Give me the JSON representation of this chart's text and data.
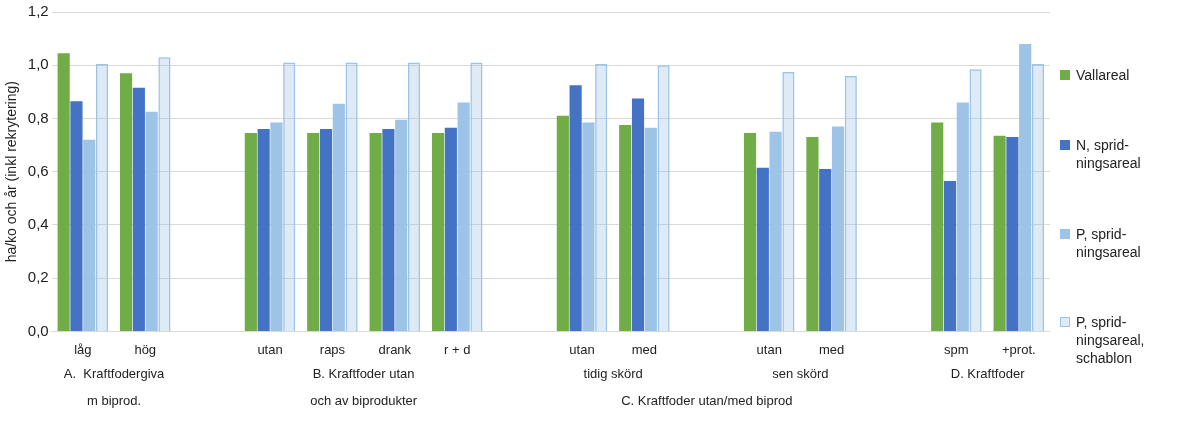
{
  "chart_data": {
    "type": "bar",
    "ylabel": "ha/ko och år (inkl rekrytering)",
    "categories": [
      "låg",
      "hög",
      null,
      "utan",
      "raps",
      "drank",
      "r + d",
      null,
      "utan",
      "med",
      null,
      "utan",
      "med",
      null,
      "spm",
      "+prot."
    ],
    "series": [
      {
        "name": "Vallareal",
        "color": "#70ad47",
        "values": [
          1.045,
          0.97,
          null,
          0.745,
          0.745,
          0.745,
          0.745,
          null,
          0.81,
          0.775,
          null,
          0.745,
          0.73,
          null,
          0.785,
          0.735
        ]
      },
      {
        "name": "N, sprid-ningsareal",
        "color": "#4472c4",
        "values": [
          0.865,
          0.915,
          null,
          0.76,
          0.76,
          0.76,
          0.765,
          null,
          0.925,
          0.875,
          null,
          0.615,
          0.61,
          null,
          0.565,
          0.73
        ]
      },
      {
        "name": "P, sprid-ningsareal",
        "color": "#9dc3e6",
        "values": [
          0.72,
          0.825,
          null,
          0.785,
          0.855,
          0.795,
          0.86,
          null,
          0.785,
          0.765,
          null,
          0.75,
          0.77,
          null,
          0.86,
          1.08
        ]
      },
      {
        "name": "P, sprid-ningsareal, schablon",
        "color": "#9dc3e6",
        "values": [
          1.005,
          1.03,
          null,
          1.01,
          1.01,
          1.01,
          1.01,
          null,
          1.005,
          1.0,
          null,
          0.975,
          0.96,
          null,
          0.985,
          1.005
        ]
      }
    ],
    "ylim": [
      0,
      1.2
    ],
    "yticks": [
      {
        "value": 0,
        "label": "0,0"
      },
      {
        "value": 0.2,
        "label": "0,2"
      },
      {
        "value": 0.4,
        "label": "0,4"
      },
      {
        "value": 0.6,
        "label": "0,6"
      },
      {
        "value": 0.8,
        "label": "0,8"
      },
      {
        "value": 1.0,
        "label": "1,0"
      },
      {
        "value": 1.2,
        "label": "1,2"
      }
    ],
    "grid": "y",
    "legend": "right",
    "annotations": [
      "A.  Kraftfodergiva",
      "m biprod.",
      "B. Kraftfoder utan",
      "och av biprodukter",
      "tidig skörd",
      "sen skörd",
      "C. Kraftfoder utan/med biprod",
      "D. Kraftfoder"
    ]
  }
}
